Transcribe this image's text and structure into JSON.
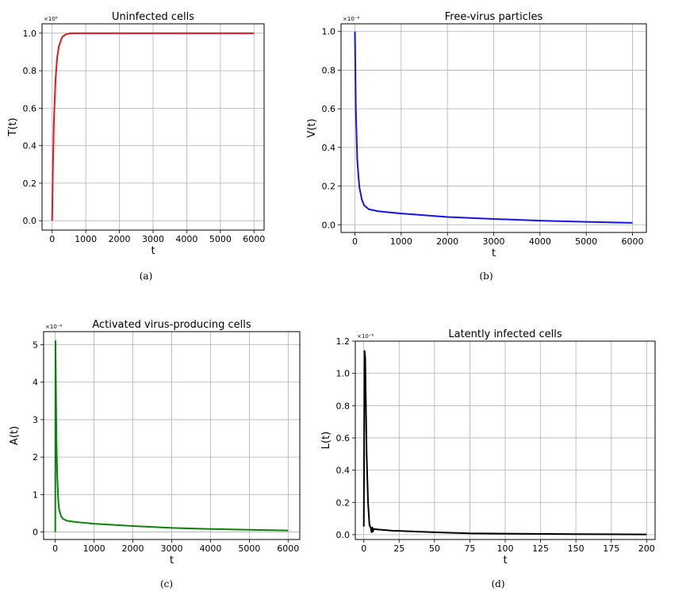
{
  "chart_data": [
    {
      "id": "a",
      "type": "line",
      "title": "Uninfected cells",
      "xlabel": "t",
      "ylabel": "T(t)",
      "multiplier": "×10⁶",
      "caption": "(a)",
      "xlim": [
        -300,
        6300
      ],
      "ylim": [
        -0.05,
        1.05
      ],
      "xticks": [
        0,
        1000,
        2000,
        3000,
        4000,
        5000,
        6000
      ],
      "xtick_labels": [
        "0",
        "1000",
        "2000",
        "3000",
        "4000",
        "5000",
        "6000"
      ],
      "yticks": [
        0.0,
        0.2,
        0.4,
        0.6,
        0.8,
        1.0
      ],
      "ytick_labels": [
        "0.0",
        "0.2",
        "0.4",
        "0.6",
        "0.8",
        "1.0"
      ],
      "grid": true,
      "series": [
        {
          "color": "#e8141b",
          "x": [
            0,
            20,
            50,
            100,
            150,
            200,
            300,
            400,
            500,
            600,
            800,
            1000,
            2000,
            3000,
            4000,
            5000,
            6000
          ],
          "y": [
            0.0,
            0.25,
            0.52,
            0.75,
            0.87,
            0.93,
            0.98,
            0.993,
            0.998,
            1.0,
            1.0,
            1.0,
            1.0,
            1.0,
            1.0,
            1.0,
            1.0
          ]
        }
      ]
    },
    {
      "id": "b",
      "type": "line",
      "title": "Free-virus particles",
      "xlabel": "t",
      "ylabel": "V(t)",
      "multiplier": "×10⁻⁸",
      "caption": "(b)",
      "xlim": [
        -300,
        6300
      ],
      "ylim": [
        -0.04,
        1.04
      ],
      "xticks": [
        0,
        1000,
        2000,
        3000,
        4000,
        5000,
        6000
      ],
      "xtick_labels": [
        "0",
        "1000",
        "2000",
        "3000",
        "4000",
        "5000",
        "6000"
      ],
      "yticks": [
        0.0,
        0.2,
        0.4,
        0.6,
        0.8,
        1.0
      ],
      "ytick_labels": [
        "0.0",
        "0.2",
        "0.4",
        "0.6",
        "0.8",
        "1.0"
      ],
      "grid": true,
      "series": [
        {
          "color": "#1414e6",
          "x": [
            0,
            20,
            50,
            80,
            100,
            150,
            200,
            300,
            500,
            1000,
            2000,
            3000,
            4000,
            5000,
            6000
          ],
          "y": [
            1.0,
            0.6,
            0.34,
            0.24,
            0.19,
            0.13,
            0.1,
            0.08,
            0.07,
            0.058,
            0.04,
            0.03,
            0.021,
            0.015,
            0.01
          ]
        }
      ]
    },
    {
      "id": "c",
      "type": "line",
      "title": "Activated virus-producing cells",
      "xlabel": "t",
      "ylabel": "A(t)",
      "multiplier": "×10⁻⁶",
      "caption": "(c)",
      "xlim": [
        -300,
        6300
      ],
      "ylim": [
        -0.2,
        5.35
      ],
      "xticks": [
        0,
        1000,
        2000,
        3000,
        4000,
        5000,
        6000
      ],
      "xtick_labels": [
        "0",
        "1000",
        "2000",
        "3000",
        "4000",
        "5000",
        "6000"
      ],
      "yticks": [
        0,
        1,
        2,
        3,
        4,
        5
      ],
      "ytick_labels": [
        "0",
        "1",
        "2",
        "3",
        "4",
        "5"
      ],
      "grid": true,
      "series": [
        {
          "color": "#0c7f0c",
          "x": [
            0,
            5,
            15,
            30,
            50,
            80,
            100,
            150,
            200,
            300,
            500,
            1000,
            2000,
            3000,
            4000,
            5000,
            6000
          ],
          "y": [
            0.0,
            5.1,
            4.1,
            2.5,
            1.5,
            0.8,
            0.6,
            0.42,
            0.35,
            0.3,
            0.27,
            0.22,
            0.16,
            0.11,
            0.08,
            0.06,
            0.04
          ]
        }
      ]
    },
    {
      "id": "d",
      "type": "line",
      "title": "Latently infected cells",
      "xlabel": "t",
      "ylabel": "L(t)",
      "multiplier": "×10⁻⁶",
      "caption": "(d)",
      "xlim": [
        -6,
        206
      ],
      "ylim": [
        -0.03,
        1.2
      ],
      "xticks": [
        0,
        25,
        50,
        75,
        100,
        125,
        150,
        175,
        200
      ],
      "xtick_labels": [
        "0",
        "25",
        "50",
        "75",
        "100",
        "125",
        "150",
        "175",
        "200"
      ],
      "yticks": [
        0.0,
        0.2,
        0.4,
        0.6,
        0.8,
        1.0,
        1.2
      ],
      "ytick_labels": [
        "0.0",
        "0.2",
        "0.4",
        "0.6",
        "0.8",
        "1.0",
        "1.2"
      ],
      "grid": true,
      "series": [
        {
          "color": "#000000",
          "x": [
            0,
            0.5,
            1.0,
            1.5,
            2,
            3,
            4,
            5,
            5.5,
            6,
            6.5,
            7,
            10,
            20,
            50,
            75,
            100,
            150,
            200
          ],
          "y": [
            0.05,
            1.14,
            1.1,
            0.8,
            0.5,
            0.2,
            0.06,
            0.04,
            0.015,
            0.045,
            0.02,
            0.035,
            0.032,
            0.025,
            0.015,
            0.008,
            0.006,
            0.003,
            0.0015
          ]
        }
      ]
    }
  ]
}
